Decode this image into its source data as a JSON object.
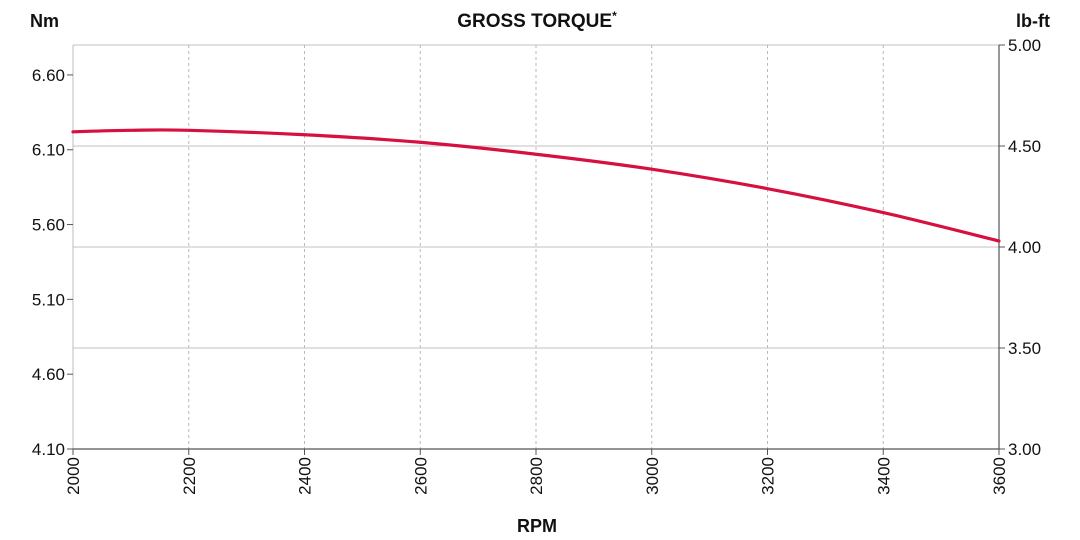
{
  "chart_data": {
    "type": "line",
    "title": "GROSS TORQUE",
    "title_marker": "*",
    "xlabel": "RPM",
    "ylabel_left": "Nm",
    "ylabel_right": "lb-ft",
    "xlim": [
      2000,
      3600
    ],
    "ylim_left": [
      4.1,
      6.8
    ],
    "ylim_right": [
      3.0,
      5.0
    ],
    "x_ticks": [
      "2000",
      "2200",
      "2400",
      "2600",
      "2800",
      "3000",
      "3200",
      "3400",
      "3600"
    ],
    "y_left_ticks": [
      "4.10",
      "4.60",
      "5.10",
      "5.60",
      "6.10",
      "6.60"
    ],
    "y_right_ticks": [
      "3.00",
      "3.50",
      "4.00",
      "4.50",
      "5.00"
    ],
    "grid": "vertical dashed, horizontal solid",
    "line_color": "#d6103f",
    "series": [
      {
        "axis": "left",
        "x": [
          2000,
          2100,
          2200,
          2400,
          2600,
          2800,
          3000,
          3200,
          3400,
          3600
        ],
        "values": [
          6.22,
          6.23,
          6.23,
          6.2,
          6.15,
          6.07,
          5.97,
          5.84,
          5.68,
          5.49
        ]
      }
    ]
  }
}
